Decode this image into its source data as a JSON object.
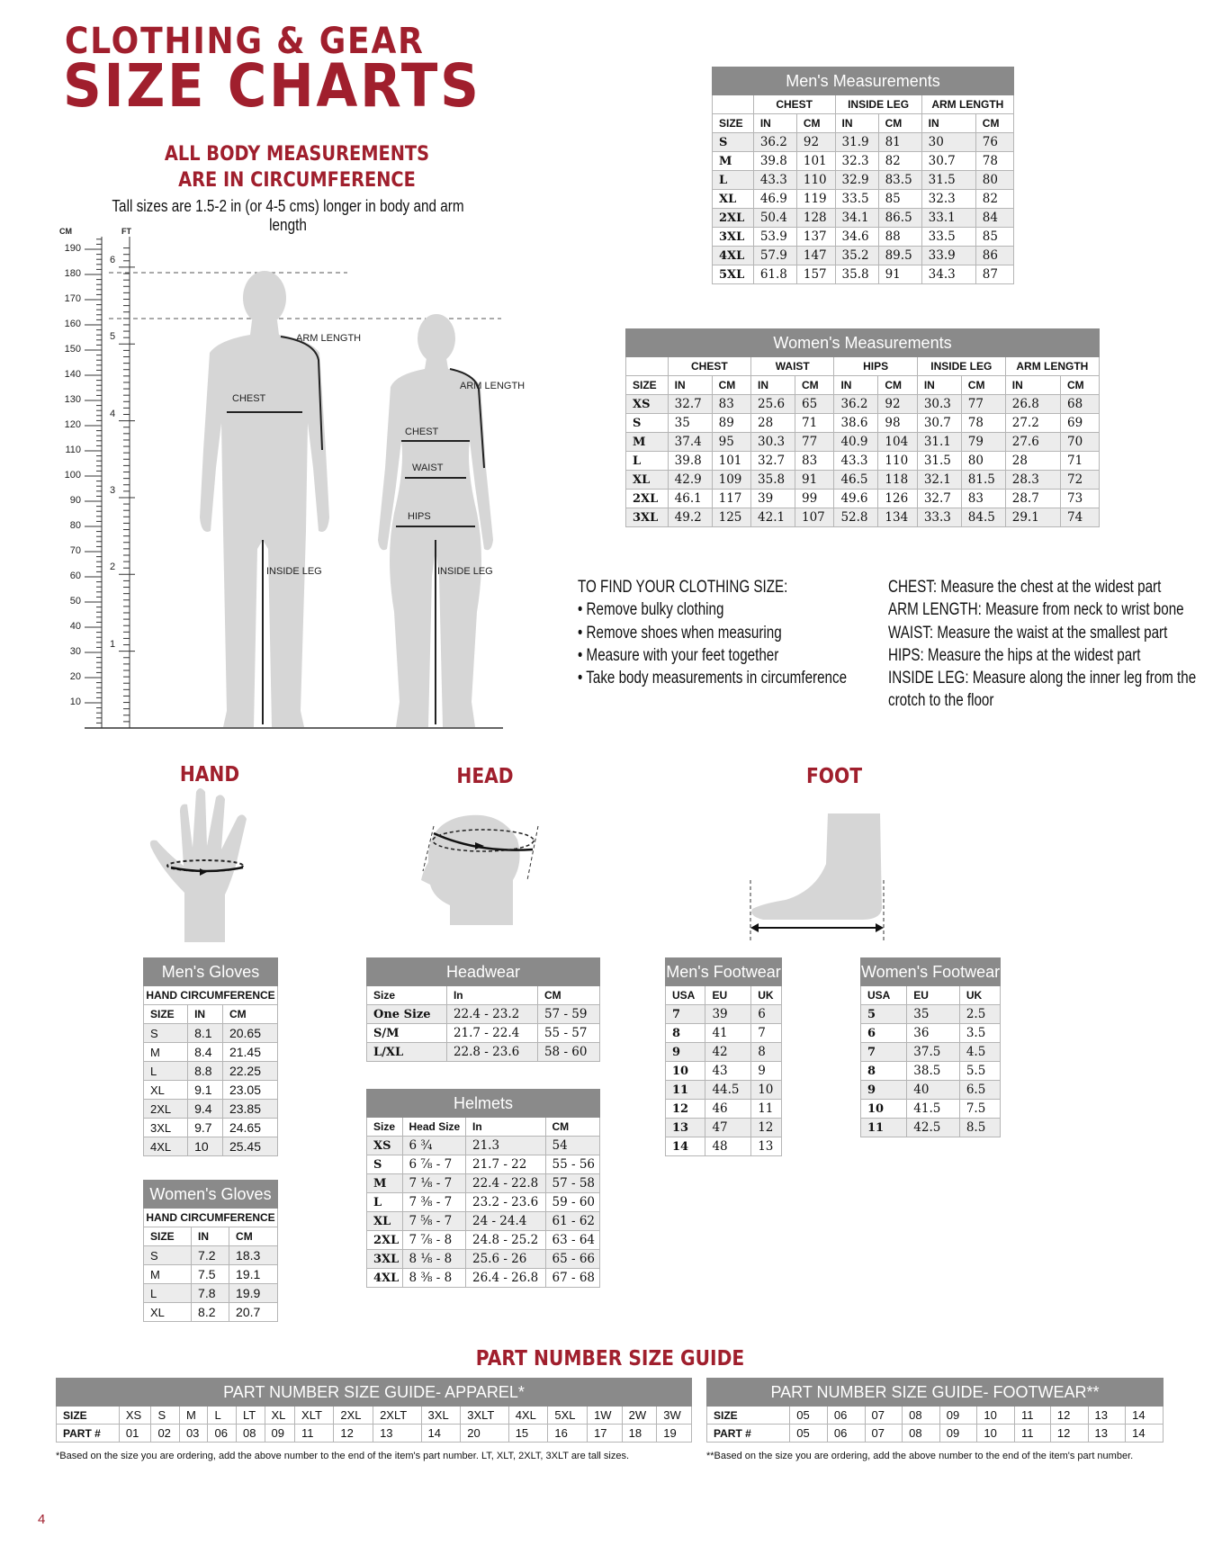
{
  "header": {
    "line1": "CLOTHING & GEAR",
    "line2": "SIZE CHARTS"
  },
  "note": {
    "line1": "ALL BODY MEASUREMENTS",
    "line2": "ARE IN CIRCUMFERENCE",
    "tall": "Tall sizes are 1.5-2 in (or 4-5 cms) longer in body and arm  length"
  },
  "ruler": {
    "cm_label": "CM",
    "ft_label": "FT",
    "cm_ticks": [
      "10",
      "20",
      "30",
      "40",
      "50",
      "60",
      "70",
      "80",
      "90",
      "100",
      "110",
      "120",
      "130",
      "140",
      "150",
      "160",
      "170",
      "180",
      "190"
    ],
    "ft_ticks": [
      "1",
      "2",
      "3",
      "4",
      "5",
      "6"
    ]
  },
  "figure_labels": {
    "man": {
      "arm": "ARM LENGTH",
      "chest": "CHEST",
      "inside_leg": "INSIDE LEG"
    },
    "woman": {
      "arm": "ARM LENGTH",
      "chest": "CHEST",
      "waist": "WAIST",
      "hips": "HIPS",
      "inside_leg": "INSIDE LEG"
    }
  },
  "instructions": {
    "title": "TO FIND YOUR CLOTHING SIZE:",
    "steps": [
      "• Remove bulky clothing",
      "• Remove shoes when measuring",
      "• Measure with your feet together",
      "• Take body measurements in circumference"
    ],
    "definitions": [
      {
        "term": "CHEST:",
        "text": " Measure the chest at the widest part"
      },
      {
        "term": "ARM LENGTH:",
        "text": " Measure from neck to wrist bone"
      },
      {
        "term": "WAIST:",
        "text": " Measure the waist at the smallest part"
      },
      {
        "term": "HIPS:",
        "text": " Measure the hips at the widest part"
      },
      {
        "term": "INSIDE LEG:",
        "text": " Measure along the inner leg from the"
      },
      {
        "term": "",
        "text": "crotch to the floor"
      }
    ]
  },
  "sections": {
    "hand": "HAND",
    "head": "HEAD",
    "foot": "FOOT",
    "part_number": "PART NUMBER SIZE GUIDE"
  },
  "colors": {
    "brand_red": "#a01f2d",
    "header_grey": "#8a8a8a",
    "stripe": "#ececec"
  },
  "tables": {
    "mens_measurements": {
      "title": "Men's Measurements",
      "groups": [
        "",
        "CHEST",
        "INSIDE LEG",
        "ARM LENGTH"
      ],
      "columns": [
        "SIZE",
        "IN",
        "CM",
        "IN",
        "CM",
        "IN",
        "CM"
      ],
      "rows": [
        [
          "S",
          "36.2",
          "92",
          "31.9",
          "81",
          "30",
          "76"
        ],
        [
          "M",
          "39.8",
          "101",
          "32.3",
          "82",
          "30.7",
          "78"
        ],
        [
          "L",
          "43.3",
          "110",
          "32.9",
          "83.5",
          "31.5",
          "80"
        ],
        [
          "XL",
          "46.9",
          "119",
          "33.5",
          "85",
          "32.3",
          "82"
        ],
        [
          "2XL",
          "50.4",
          "128",
          "34.1",
          "86.5",
          "33.1",
          "84"
        ],
        [
          "3XL",
          "53.9",
          "137",
          "34.6",
          "88",
          "33.5",
          "85"
        ],
        [
          "4XL",
          "57.9",
          "147",
          "35.2",
          "89.5",
          "33.9",
          "86"
        ],
        [
          "5XL",
          "61.8",
          "157",
          "35.8",
          "91",
          "34.3",
          "87"
        ]
      ]
    },
    "womens_measurements": {
      "title": "Women's Measurements",
      "groups": [
        "",
        "CHEST",
        "WAIST",
        "HIPS",
        "INSIDE LEG",
        "ARM LENGTH"
      ],
      "columns": [
        "SIZE",
        "IN",
        "CM",
        "IN",
        "CM",
        "IN",
        "CM",
        "IN",
        "CM",
        "IN",
        "CM"
      ],
      "rows": [
        [
          "XS",
          "32.7",
          "83",
          "25.6",
          "65",
          "36.2",
          "92",
          "30.3",
          "77",
          "26.8",
          "68"
        ],
        [
          "S",
          "35",
          "89",
          "28",
          "71",
          "38.6",
          "98",
          "30.7",
          "78",
          "27.2",
          "69"
        ],
        [
          "M",
          "37.4",
          "95",
          "30.3",
          "77",
          "40.9",
          "104",
          "31.1",
          "79",
          "27.6",
          "70"
        ],
        [
          "L",
          "39.8",
          "101",
          "32.7",
          "83",
          "43.3",
          "110",
          "31.5",
          "80",
          "28",
          "71"
        ],
        [
          "XL",
          "42.9",
          "109",
          "35.8",
          "91",
          "46.5",
          "118",
          "32.1",
          "81.5",
          "28.3",
          "72"
        ],
        [
          "2XL",
          "46.1",
          "117",
          "39",
          "99",
          "49.6",
          "126",
          "32.7",
          "83",
          "28.7",
          "73"
        ],
        [
          "3XL",
          "49.2",
          "125",
          "42.1",
          "107",
          "52.8",
          "134",
          "33.3",
          "84.5",
          "29.1",
          "74"
        ]
      ]
    },
    "mens_gloves": {
      "title": "Men's Gloves",
      "subtitle": "HAND CIRCUMFERENCE",
      "columns": [
        "SIZE",
        "IN",
        "CM"
      ],
      "rows": [
        [
          "S",
          "8.1",
          "20.65"
        ],
        [
          "M",
          "8.4",
          "21.45"
        ],
        [
          "L",
          "8.8",
          "22.25"
        ],
        [
          "XL",
          "9.1",
          "23.05"
        ],
        [
          "2XL",
          "9.4",
          "23.85"
        ],
        [
          "3XL",
          "9.7",
          "24.65"
        ],
        [
          "4XL",
          "10",
          "25.45"
        ]
      ]
    },
    "womens_gloves": {
      "title": "Women's Gloves",
      "subtitle": "HAND CIRCUMFERENCE",
      "columns": [
        "SIZE",
        "IN",
        "CM"
      ],
      "rows": [
        [
          "S",
          "7.2",
          "18.3"
        ],
        [
          "M",
          "7.5",
          "19.1"
        ],
        [
          "L",
          "7.8",
          "19.9"
        ],
        [
          "XL",
          "8.2",
          "20.7"
        ]
      ]
    },
    "headwear": {
      "title": "Headwear",
      "columns": [
        "Size",
        "In",
        "CM"
      ],
      "rows": [
        [
          "One Size",
          "22.4 - 23.2",
          "57 - 59"
        ],
        [
          "S/M",
          "21.7 - 22.4",
          "55 - 57"
        ],
        [
          "L/XL",
          "22.8 - 23.6",
          "58 - 60"
        ]
      ]
    },
    "helmets": {
      "title": "Helmets",
      "columns": [
        "Size",
        "Head Size",
        "In",
        "CM"
      ],
      "rows": [
        [
          "XS",
          "6 ¾",
          "21.3",
          "54"
        ],
        [
          "S",
          "6 ⅞ - 7",
          "21.7 - 22",
          "55 - 56"
        ],
        [
          "M",
          "7 ⅛ - 7",
          "22.4 - 22.8",
          "57 - 58"
        ],
        [
          "L",
          "7 ⅜ - 7",
          "23.2 - 23.6",
          "59 - 60"
        ],
        [
          "XL",
          "7 ⅝ - 7",
          "24 - 24.4",
          "61 - 62"
        ],
        [
          "2XL",
          "7 ⅞ - 8",
          "24.8 - 25.2",
          "63 - 64"
        ],
        [
          "3XL",
          "8 ⅛ - 8",
          "25.6 - 26",
          "65 - 66"
        ],
        [
          "4XL",
          "8 ⅜ - 8",
          "26.4 - 26.8",
          "67 - 68"
        ]
      ]
    },
    "mens_footwear": {
      "title": "Men's Footwear",
      "columns": [
        "USA",
        "EU",
        "UK"
      ],
      "rows": [
        [
          "7",
          "39",
          "6"
        ],
        [
          "8",
          "41",
          "7"
        ],
        [
          "9",
          "42",
          "8"
        ],
        [
          "10",
          "43",
          "9"
        ],
        [
          "11",
          "44.5",
          "10"
        ],
        [
          "12",
          "46",
          "11"
        ],
        [
          "13",
          "47",
          "12"
        ],
        [
          "14",
          "48",
          "13"
        ]
      ]
    },
    "womens_footwear": {
      "title": "Women's Footwear",
      "columns": [
        "USA",
        "EU",
        "UK"
      ],
      "rows": [
        [
          "5",
          "35",
          "2.5"
        ],
        [
          "6",
          "36",
          "3.5"
        ],
        [
          "7",
          "37.5",
          "4.5"
        ],
        [
          "8",
          "38.5",
          "5.5"
        ],
        [
          "9",
          "40",
          "6.5"
        ],
        [
          "10",
          "41.5",
          "7.5"
        ],
        [
          "11",
          "42.5",
          "8.5"
        ]
      ]
    },
    "pn_apparel": {
      "title": "PART NUMBER SIZE GUIDE- APPAREL*",
      "rows": [
        [
          "SIZE",
          "XS",
          "S",
          "M",
          "L",
          "LT",
          "XL",
          "XLT",
          "2XL",
          "2XLT",
          "3XL",
          "3XLT",
          "4XL",
          "5XL",
          "1W",
          "2W",
          "3W"
        ],
        [
          "PART #",
          "01",
          "02",
          "03",
          "06",
          "08",
          "09",
          "11",
          "12",
          "13",
          "14",
          "20",
          "15",
          "16",
          "17",
          "18",
          "19"
        ]
      ]
    },
    "pn_footwear": {
      "title": "PART NUMBER SIZE GUIDE- FOOTWEAR**",
      "rows": [
        [
          "SIZE",
          "05",
          "06",
          "07",
          "08",
          "09",
          "10",
          "11",
          "12",
          "13",
          "14"
        ],
        [
          "PART #",
          "05",
          "06",
          "07",
          "08",
          "09",
          "10",
          "11",
          "12",
          "13",
          "14"
        ]
      ]
    }
  },
  "footnotes": {
    "apparel": "*Based on the size you are ordering, add the above number to the end of the item's part number. LT, XLT, 2XLT, 3XLT are tall sizes.",
    "footwear": "**Based on the size you are ordering, add the above number to the end of the item's part number."
  },
  "page_number": "4"
}
